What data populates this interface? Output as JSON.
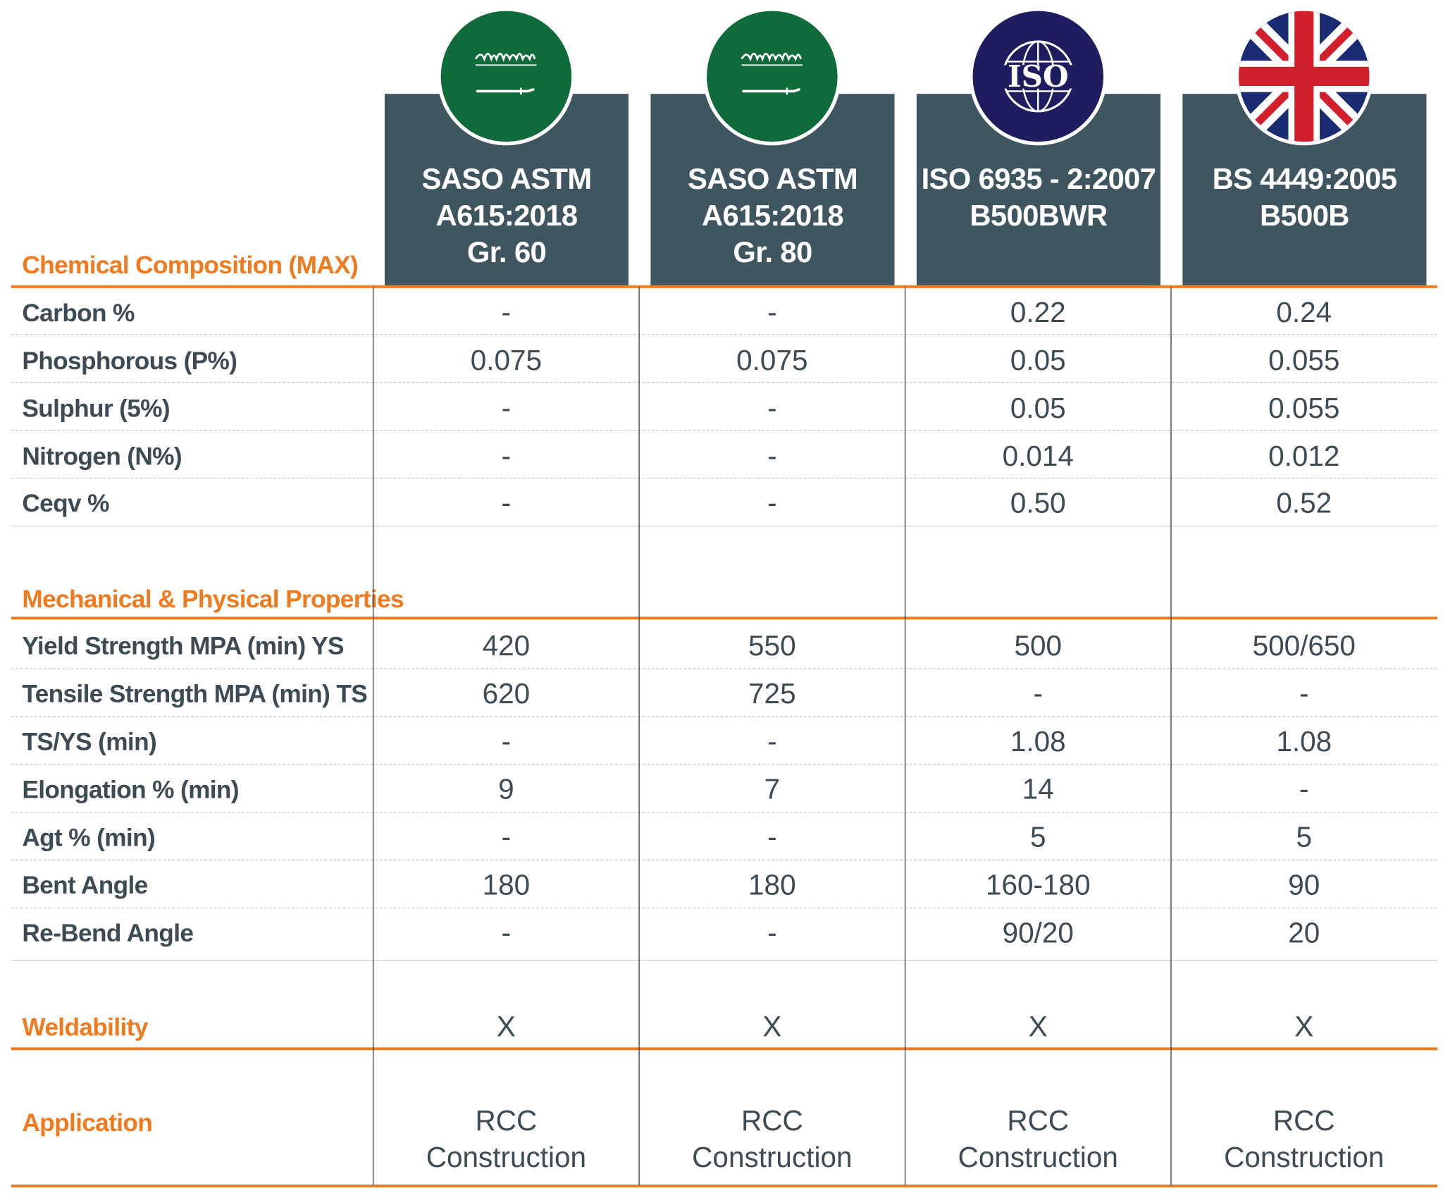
{
  "standards": [
    {
      "flag": "saudi-flag",
      "line1": "SASO ASTM",
      "line2": "A615:2018",
      "line3": "Gr. 60"
    },
    {
      "flag": "saudi-flag",
      "line1": "SASO ASTM",
      "line2": "A615:2018",
      "line3": "Gr. 80"
    },
    {
      "flag": "iso-logo",
      "logo_text": "ISO",
      "line1": "ISO 6935 - 2:2007",
      "line2": "B500BWR",
      "line3": ""
    },
    {
      "flag": "uk-flag",
      "line1": "BS 4449:2005",
      "line2": "B500B",
      "line3": ""
    }
  ],
  "colors": {
    "header": "#3f5560",
    "accent": "#f07a1e",
    "text": "#3d4b55",
    "saudi_green": "#0f6b39",
    "iso_navy": "#1d1d60"
  },
  "chemical": {
    "title": "Chemical Composition (MAX)",
    "rows": [
      {
        "label": "Carbon %",
        "values": [
          "-",
          "-",
          "0.22",
          "0.24"
        ]
      },
      {
        "label": "Phosphorous (P%)",
        "values": [
          "0.075",
          "0.075",
          "0.05",
          "0.055"
        ]
      },
      {
        "label": "Sulphur (5%)",
        "values": [
          "-",
          "-",
          "0.05",
          "0.055"
        ]
      },
      {
        "label": "Nitrogen (N%)",
        "values": [
          "-",
          "-",
          "0.014",
          "0.012"
        ]
      },
      {
        "label": "Ceqv %",
        "values": [
          "-",
          "-",
          "0.50",
          "0.52"
        ]
      }
    ]
  },
  "mechanical": {
    "title": "Mechanical & Physical Properties",
    "rows": [
      {
        "label": "Yield Strength MPA (min) YS",
        "values": [
          "420",
          "550",
          "500",
          "500/650"
        ]
      },
      {
        "label": "Tensile Strength MPA (min) TS",
        "values": [
          "620",
          "725",
          "-",
          "-"
        ]
      },
      {
        "label": "TS/YS (min)",
        "values": [
          "-",
          "-",
          "1.08",
          "1.08"
        ]
      },
      {
        "label": "Elongation % (min)",
        "values": [
          "9",
          "7",
          "14",
          "-"
        ]
      },
      {
        "label": "Agt % (min)",
        "values": [
          "-",
          "-",
          "5",
          "5"
        ]
      },
      {
        "label": "Bent Angle",
        "values": [
          "180",
          "180",
          "160-180",
          "90"
        ]
      },
      {
        "label": "Re-Bend Angle",
        "values": [
          "-",
          "-",
          "90/20",
          "20"
        ]
      }
    ]
  },
  "weldability": {
    "title": "Weldability",
    "values": [
      "X",
      "X",
      "X",
      "X"
    ]
  },
  "application": {
    "title": "Application",
    "values": [
      {
        "line1": "RCC",
        "line2": "Construction"
      },
      {
        "line1": "RCC",
        "line2": "Construction"
      },
      {
        "line1": "RCC",
        "line2": "Construction"
      },
      {
        "line1": "RCC",
        "line2": "Construction"
      }
    ]
  }
}
